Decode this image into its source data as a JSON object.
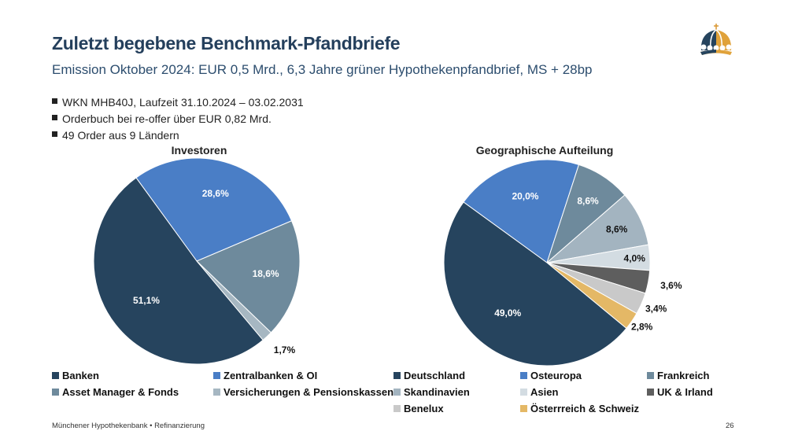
{
  "header": {
    "title": "Zuletzt begebene Benchmark-Pfandbriefe",
    "subtitle": "Emission Oktober 2024: EUR 0,5 Mrd., 6,3 Jahre grüner Hypothekenpfandbrief, MS + 28bp",
    "logo_icon": "crown-logo-icon"
  },
  "bullets": [
    "WKN MHB40J, Laufzeit 31.10.2024 – 03.02.2031",
    "Orderbuch bei re-offer über EUR 0,82 Mrd.",
    "49 Order aus 9 Ländern"
  ],
  "chart_data": [
    {
      "type": "pie",
      "title": "Investoren",
      "legend_position": "bottom",
      "categories": [
        "Zentralbanken & OI",
        "Asset Manager & Fonds",
        "Versicherungen & Pensionskassen",
        "Banken"
      ],
      "values": [
        28.6,
        18.6,
        1.7,
        51.1
      ],
      "labels": [
        "28,6%",
        "18,6%",
        "1,7%",
        "51,1%"
      ],
      "colors": [
        "#4a7ec6",
        "#6e8a9c",
        "#a6b7c2",
        "#26445e"
      ],
      "legend_order": [
        "Banken",
        "Zentralbanken & OI",
        "Asset Manager & Fonds",
        "Versicherungen & Pensionskassen"
      ]
    },
    {
      "type": "pie",
      "title": "Geographische Aufteilung",
      "legend_position": "bottom",
      "categories": [
        "Osteuropa",
        "Frankreich",
        "Skandinavien",
        "Asien",
        "UK & Irland",
        "Benelux",
        "Österrreich & Schweiz",
        "Deutschland"
      ],
      "values": [
        20.0,
        8.6,
        8.6,
        4.0,
        3.6,
        3.4,
        2.8,
        49.0
      ],
      "labels": [
        "20,0%",
        "8,6%",
        "8,6%",
        "4,0%",
        "3,6%",
        "3,4%",
        "2,8%",
        "49,0%"
      ],
      "colors": [
        "#4a7ec6",
        "#6e8a9c",
        "#a3b4c0",
        "#d3dce2",
        "#5e5e5e",
        "#c9c9c9",
        "#e4b866",
        "#26445e"
      ],
      "legend_order": [
        "Deutschland",
        "Osteuropa",
        "Frankreich",
        "Skandinavien",
        "Asien",
        "UK & Irland",
        "Benelux",
        "Österrreich & Schweiz"
      ]
    }
  ],
  "footer": {
    "text": "Münchener Hypothekenbank • Refinanzierung",
    "page_number": "26"
  }
}
